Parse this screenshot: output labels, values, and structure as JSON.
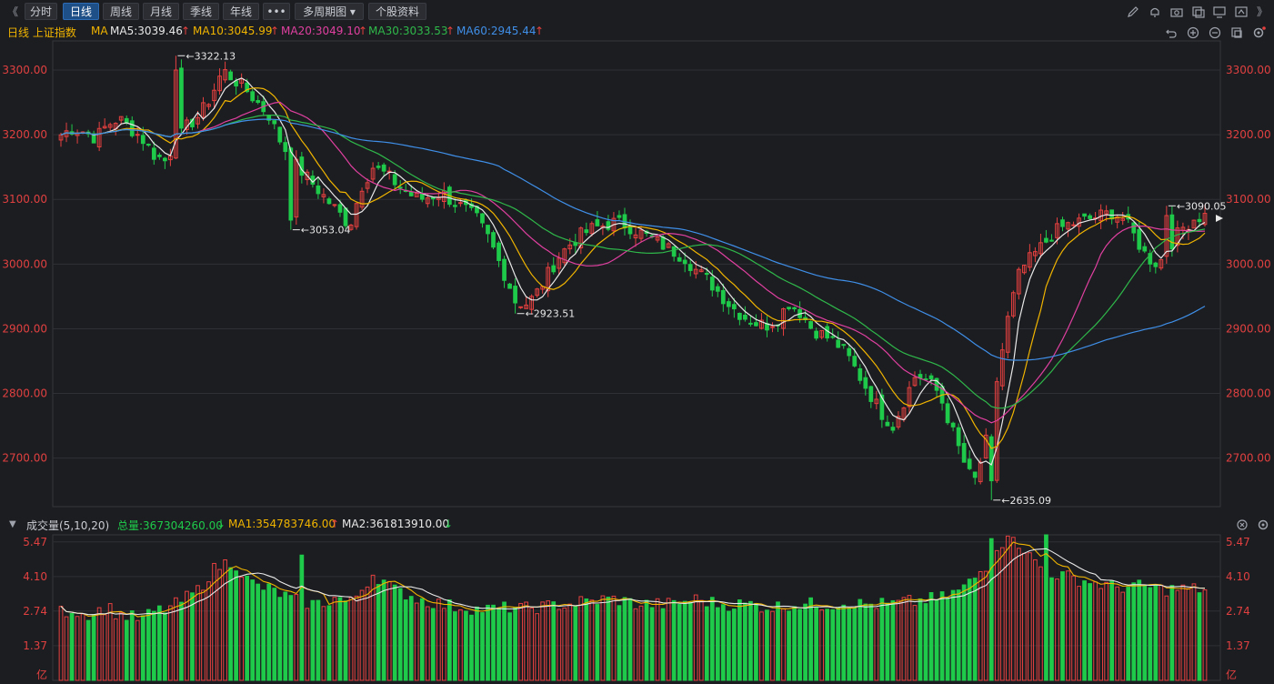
{
  "toolbar": {
    "collapse_label": "《",
    "tabs": [
      {
        "label": "分时",
        "active": false
      },
      {
        "label": "日线",
        "active": true
      },
      {
        "label": "周线",
        "active": false
      },
      {
        "label": "月线",
        "active": false
      },
      {
        "label": "季线",
        "active": false
      },
      {
        "label": "年线",
        "active": false
      },
      {
        "label": "•••",
        "active": false
      },
      {
        "label": "多周期图 ▾",
        "active": false
      },
      {
        "label": "个股资料",
        "active": false
      }
    ],
    "expand_label": "》",
    "icons": [
      "pencil-icon",
      "bell-icon",
      "camera-icon",
      "copy-icon",
      "monitor-icon",
      "share-icon"
    ],
    "sub_icons": [
      "undo-icon",
      "zoom-in-icon",
      "zoom-out-icon",
      "layers-icon",
      "settings-icon"
    ]
  },
  "legend": {
    "title": "日线 上证指数",
    "ma_label": "MA",
    "ma5": "MA5:3039.46",
    "ma10": "MA10:3045.99",
    "ma20": "MA20:3049.10",
    "ma30": "MA30:3033.53",
    "ma60": "MA60:2945.44",
    "arrow_up": "↑",
    "colors": {
      "ma5": "#e8e8e8",
      "ma10": "#f0b400",
      "ma20": "#e040a0",
      "ma30": "#2fb84a",
      "ma60": "#3f8fe8",
      "title": "#f0b400"
    }
  },
  "vol_legend": {
    "toggle": "▼",
    "title": "成交量(5,10,20)",
    "total": "总量:367304260.00",
    "ma1": "MA1:354783746.00",
    "ma2": "MA2:361813910.00",
    "arrow_down": "↓",
    "arrow_up": "↑"
  },
  "chart_data": {
    "type": "candlestick",
    "price_axis_ticks": [
      "3300.00",
      "3200.00",
      "3100.00",
      "3000.00",
      "2900.00",
      "2800.00",
      "2700.00"
    ],
    "price_axis_values": [
      3300,
      3200,
      3100,
      3000,
      2900,
      2800,
      2700
    ],
    "price_range": [
      2625,
      3345
    ],
    "volume_axis_ticks": [
      "5.47",
      "4.10",
      "2.74",
      "1.37",
      "亿"
    ],
    "volume_axis_values": [
      5.47,
      4.1,
      2.74,
      1.37
    ],
    "volume_unit": "亿",
    "volume_range": [
      0,
      5.75
    ],
    "annotations": [
      {
        "label": "3322.13",
        "value": 3322.13
      },
      {
        "label": "3053.04",
        "value": 3053.04
      },
      {
        "label": "2923.51",
        "value": 2923.51
      },
      {
        "label": "2635.09",
        "value": 2635.09
      },
      {
        "label": "3090.05",
        "value": 3090.05
      }
    ],
    "anchors": [
      3200,
      3210,
      3205,
      3195,
      3215,
      3225,
      3210,
      3195,
      3170,
      3160,
      3190,
      3215,
      3230,
      3260,
      3300,
      3285,
      3270,
      3250,
      3230,
      3190,
      3160,
      3140,
      3120,
      3100,
      3080,
      3060,
      3120,
      3150,
      3140,
      3125,
      3110,
      3100,
      3105,
      3110,
      3095,
      3085,
      3070,
      3040,
      3000,
      2960,
      2935,
      2950,
      2980,
      3010,
      3030,
      3045,
      3055,
      3060,
      3065,
      3060,
      3050,
      3040,
      3030,
      3020,
      3010,
      2990,
      2975,
      2955,
      2935,
      2920,
      2910,
      2905,
      2915,
      2940,
      2925,
      2900,
      2890,
      2880,
      2860,
      2830,
      2800,
      2770,
      2750,
      2790,
      2830,
      2820,
      2800,
      2750,
      2700,
      2660,
      2720,
      2820,
      2920,
      2990,
      3010,
      3030,
      3050,
      3060,
      3065,
      3070,
      3075,
      3080,
      3070,
      3040,
      3010,
      3000,
      3030,
      3055,
      3070,
      3075
    ],
    "volumes": [
      2.7,
      2.8,
      2.6,
      2.7,
      2.9,
      2.6,
      2.5,
      2.4,
      2.7,
      2.8,
      3.0,
      3.3,
      3.6,
      4.3,
      4.6,
      4.7,
      4.0,
      3.7,
      3.6,
      3.4,
      3.2,
      3.1,
      3.0,
      3.1,
      3.3,
      3.0,
      3.6,
      4.2,
      3.9,
      3.5,
      3.4,
      3.2,
      3.1,
      3.0,
      2.9,
      2.9,
      2.8,
      2.8,
      2.8,
      2.9,
      2.8,
      2.9,
      2.9,
      3.0,
      3.0,
      3.1,
      3.1,
      3.2,
      3.2,
      3.1,
      3.0,
      3.0,
      3.0,
      3.0,
      3.1,
      3.2,
      3.1,
      3.0,
      3.0,
      3.0,
      3.0,
      2.9,
      2.9,
      3.0,
      3.0,
      3.0,
      3.0,
      3.0,
      3.1,
      3.0,
      3.0,
      3.0,
      3.0,
      3.1,
      3.1,
      3.2,
      3.2,
      3.4,
      3.6,
      4.0,
      4.5,
      5.3,
      5.7,
      5.4,
      4.8,
      4.4,
      4.2,
      4.1,
      4.0,
      3.9,
      3.8,
      3.7,
      3.7,
      3.7,
      3.7,
      3.6,
      3.6,
      3.6,
      3.6,
      3.6
    ],
    "ma_lines": [
      {
        "name": "MA5",
        "color": "#e8e8e8"
      },
      {
        "name": "MA10",
        "color": "#f0b400"
      },
      {
        "name": "MA20",
        "color": "#e040a0"
      },
      {
        "name": "MA30",
        "color": "#2fb84a"
      },
      {
        "name": "MA60",
        "color": "#3f8fe8"
      }
    ],
    "up_color": "#e5403f",
    "down_color": "#1fca4a",
    "grid": true
  }
}
